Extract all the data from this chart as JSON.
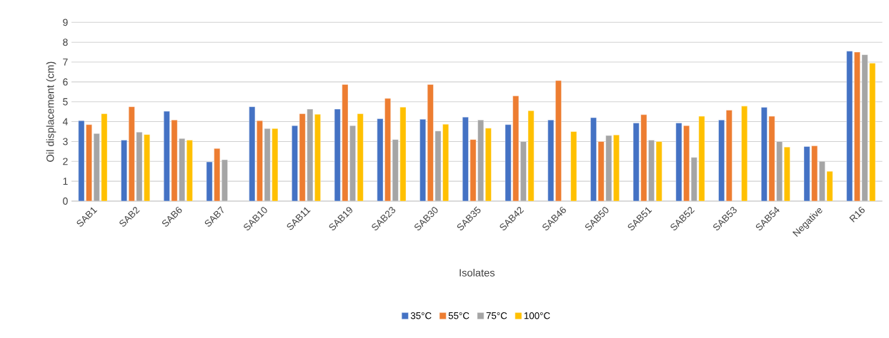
{
  "chart_data": {
    "type": "bar",
    "xlabel": "Isolates",
    "ylabel": "Oil displacement (cm)",
    "categories": [
      "SAB1",
      "SAB2",
      "SAB6",
      "SAB7",
      "SAB10",
      "SAB11",
      "SAB19",
      "SAB23",
      "SAB30",
      "SAB35",
      "SAB42",
      "SAB46",
      "SAB50",
      "SAB51",
      "SAB52",
      "SAB53",
      "SAB54",
      "Negative",
      "R16"
    ],
    "series": [
      {
        "name": "35°C",
        "color": "#4472c4",
        "values": [
          4.05,
          3.07,
          4.52,
          1.97,
          4.75,
          3.8,
          4.63,
          4.15,
          4.12,
          4.23,
          3.85,
          4.08,
          4.2,
          3.93,
          3.93,
          4.08,
          4.72,
          2.75,
          7.55
        ]
      },
      {
        "name": "55°C",
        "color": "#ed7d31",
        "values": [
          3.85,
          4.75,
          4.08,
          2.65,
          4.05,
          4.4,
          5.87,
          5.17,
          5.87,
          3.1,
          5.3,
          6.07,
          3.0,
          4.35,
          3.8,
          4.58,
          4.27,
          2.78,
          7.5
        ]
      },
      {
        "name": "75°C",
        "color": "#a5a5a5",
        "values": [
          3.4,
          3.47,
          3.15,
          2.08,
          3.65,
          4.63,
          3.8,
          3.1,
          3.53,
          4.08,
          3.0,
          null,
          3.3,
          3.07,
          2.2,
          null,
          3.0,
          2.0,
          7.37
        ]
      },
      {
        "name": "100°C",
        "color": "#ffc000",
        "values": [
          4.4,
          3.35,
          3.07,
          null,
          3.65,
          4.37,
          4.4,
          4.73,
          3.87,
          3.67,
          4.55,
          3.5,
          3.33,
          3.0,
          4.27,
          4.78,
          2.72,
          1.5,
          6.95
        ]
      }
    ],
    "ylim": [
      0,
      9
    ],
    "yticks": [
      0,
      1,
      2,
      3,
      4,
      5,
      6,
      7,
      8,
      9
    ],
    "grid": "y",
    "legend": "bottom"
  }
}
